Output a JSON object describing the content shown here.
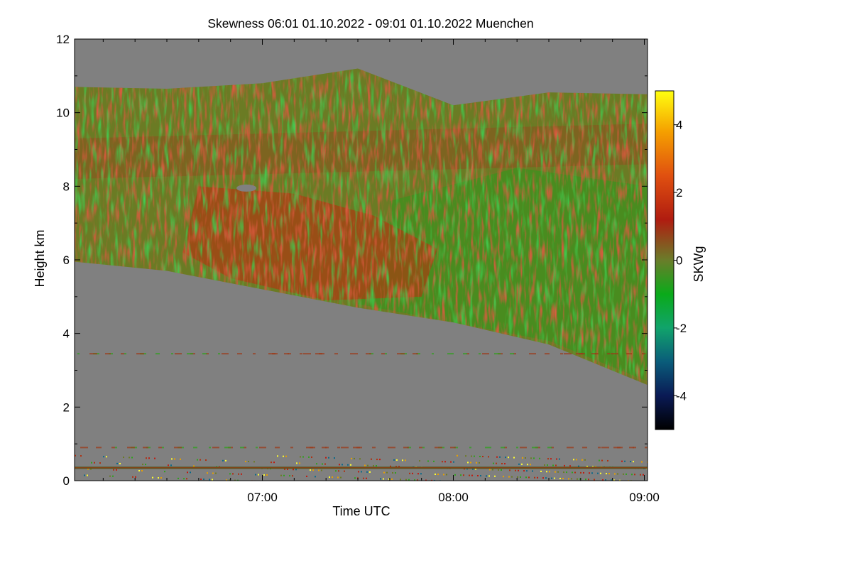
{
  "chart_data": {
    "type": "heatmap",
    "title": "Skewness   06:01 01.10.2022 - 09:01 01.10.2022 Muenchen",
    "xlabel": "Time UTC",
    "ylabel": "Height km",
    "x_range": [
      "06:01",
      "09:01"
    ],
    "x_ticks": [
      "07:00",
      "08:00",
      "09:00"
    ],
    "ylim": [
      0,
      12
    ],
    "y_ticks": [
      "0",
      "2",
      "4",
      "6",
      "8",
      "10",
      "12"
    ],
    "colorbar": {
      "label": "SKWg",
      "range": [
        -5,
        5
      ],
      "ticks": [
        "-4",
        "-2",
        "0",
        "2",
        "4"
      ],
      "colors": [
        "#000000",
        "#0a1a55",
        "#0a5c7a",
        "#11a36b",
        "#0aaa1a",
        "#6a7d2a",
        "#b01c10",
        "#e05010",
        "#f5a000",
        "#ffff10"
      ]
    },
    "no_data_color": "#808080",
    "signal_layer": {
      "description_free_boundaries": {
        "times_utc": [
          "06:01",
          "06:30",
          "07:00",
          "07:30",
          "08:00",
          "08:30",
          "09:01"
        ],
        "bottom_km": [
          5.95,
          5.7,
          5.2,
          4.7,
          4.3,
          3.7,
          2.6
        ],
        "top_km": [
          10.7,
          10.65,
          10.8,
          11.2,
          10.2,
          10.55,
          10.5
        ]
      }
    },
    "near_ground_layer_km": [
      0.0,
      0.7
    ],
    "noise_line_km": 0.35,
    "broken_layers_km": [
      3.45,
      0.9
    ]
  }
}
